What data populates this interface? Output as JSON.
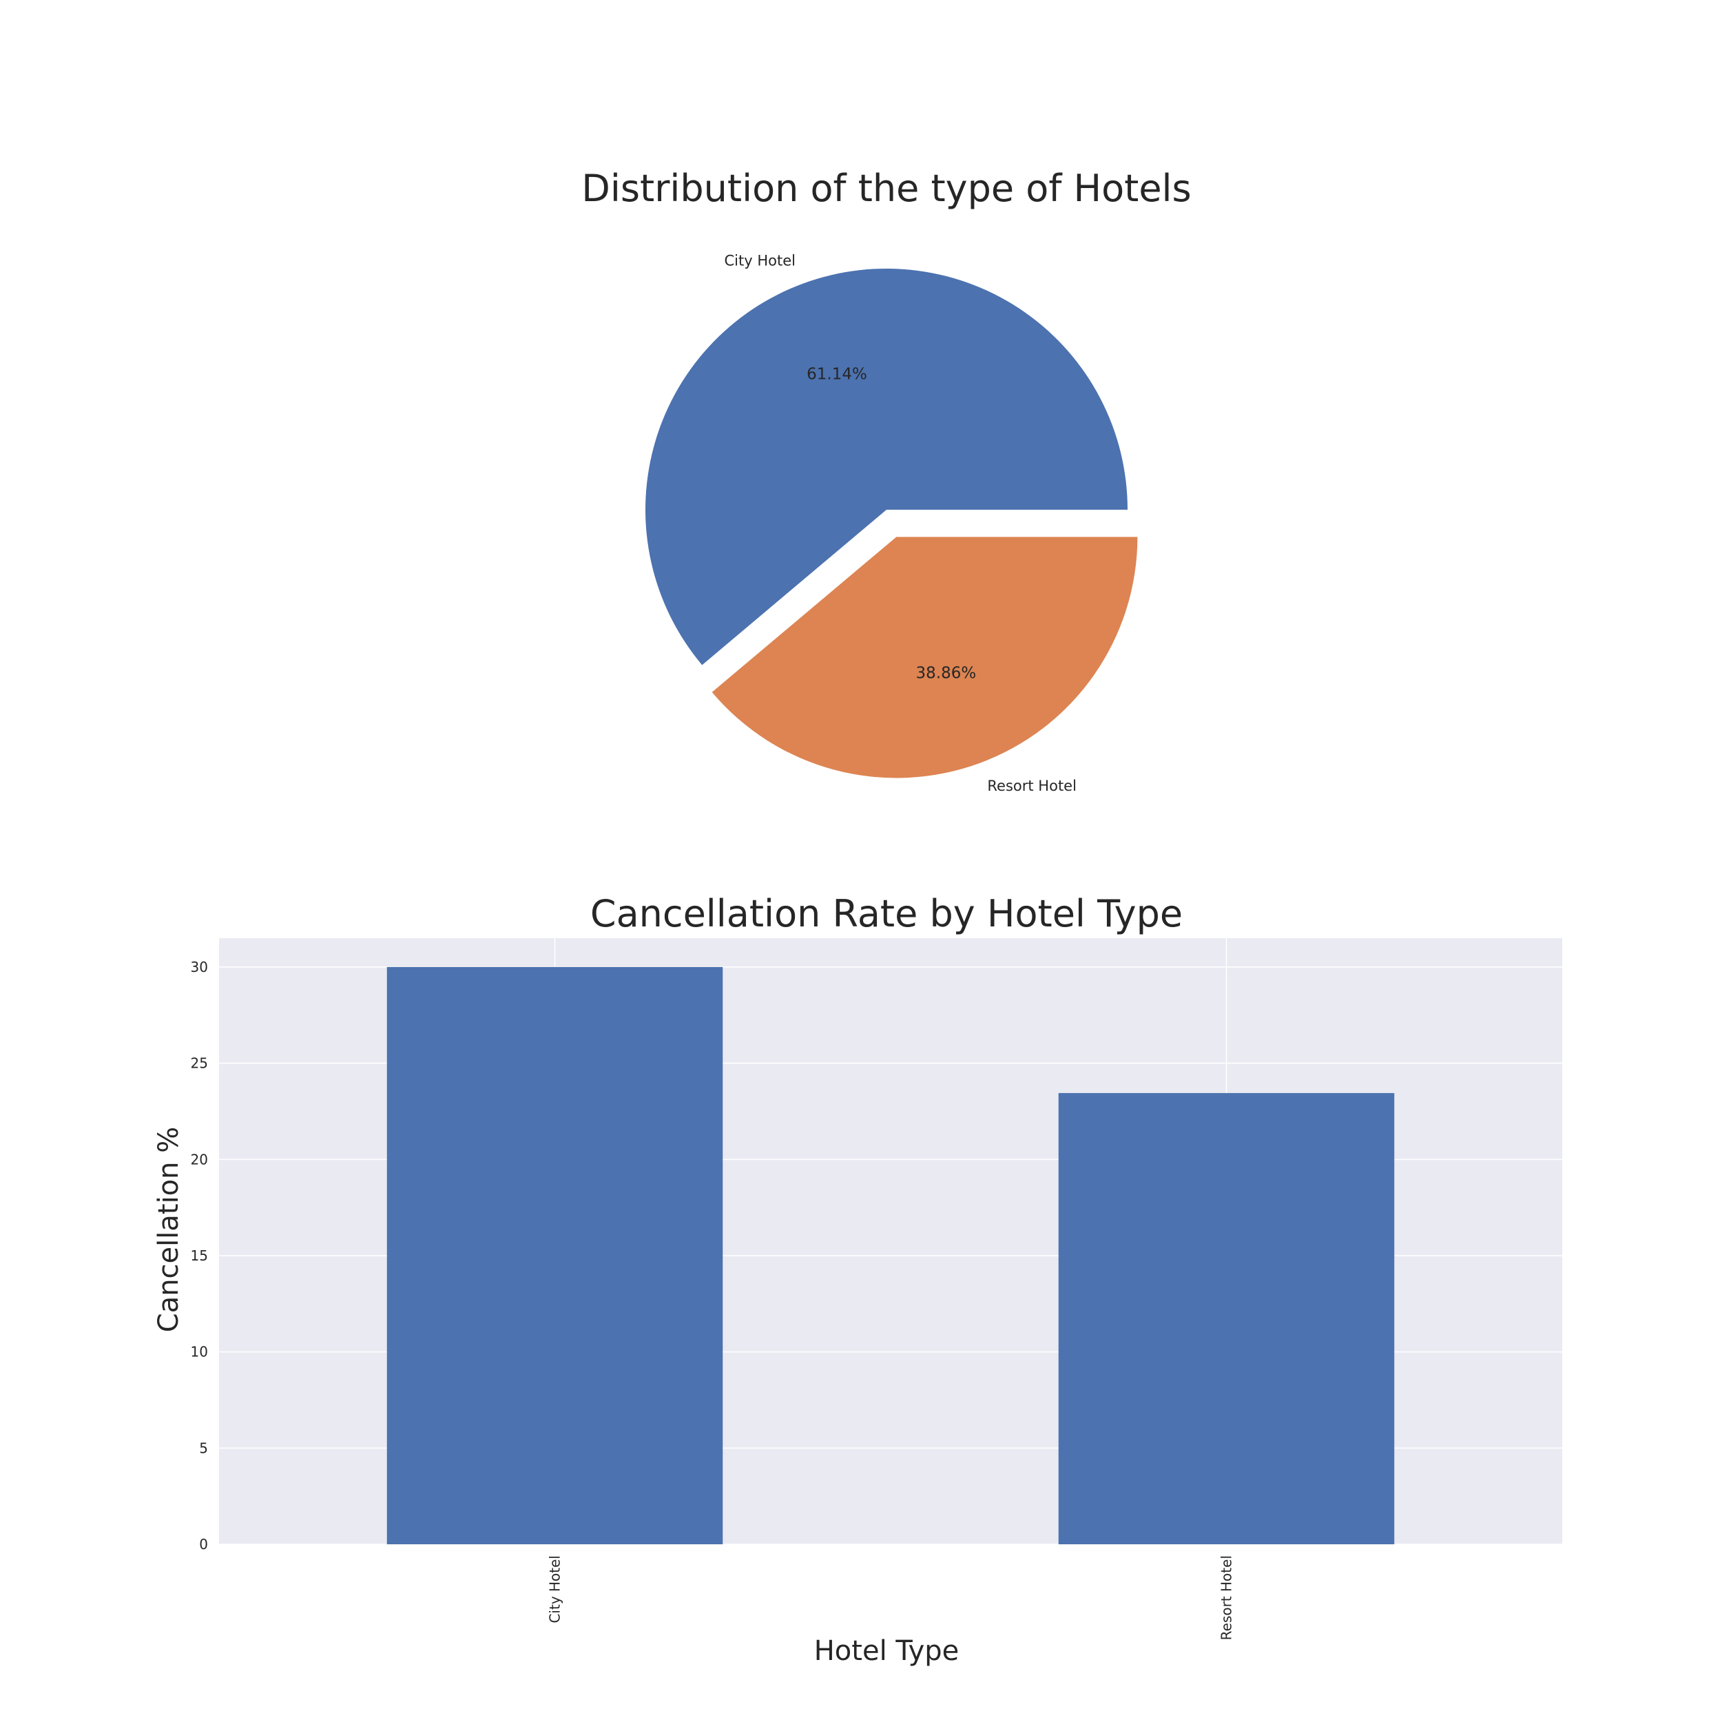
{
  "colors": {
    "city": "#4c72b0",
    "resort": "#dd8452",
    "plot_bg": "#eaeaf2",
    "grid": "#ffffff",
    "text": "#262626"
  },
  "chart_data": [
    {
      "type": "pie",
      "title": "Distribution of the type of Hotels",
      "labels": [
        "City Hotel",
        "Resort Hotel"
      ],
      "percent_labels": [
        "61.14%",
        "38.86%"
      ],
      "values": [
        61.14,
        38.86
      ],
      "explode": [
        0,
        0.05
      ]
    },
    {
      "type": "bar",
      "title": "Cancellation Rate by Hotel Type",
      "xlabel": "Hotel Type",
      "ylabel": "Cancellation %",
      "categories": [
        "City Hotel",
        "Resort Hotel"
      ],
      "values": [
        30.0,
        23.45
      ],
      "ylim": [
        0,
        31.5
      ],
      "yticks": [
        0,
        5,
        10,
        15,
        20,
        25,
        30
      ],
      "grid": true
    }
  ]
}
